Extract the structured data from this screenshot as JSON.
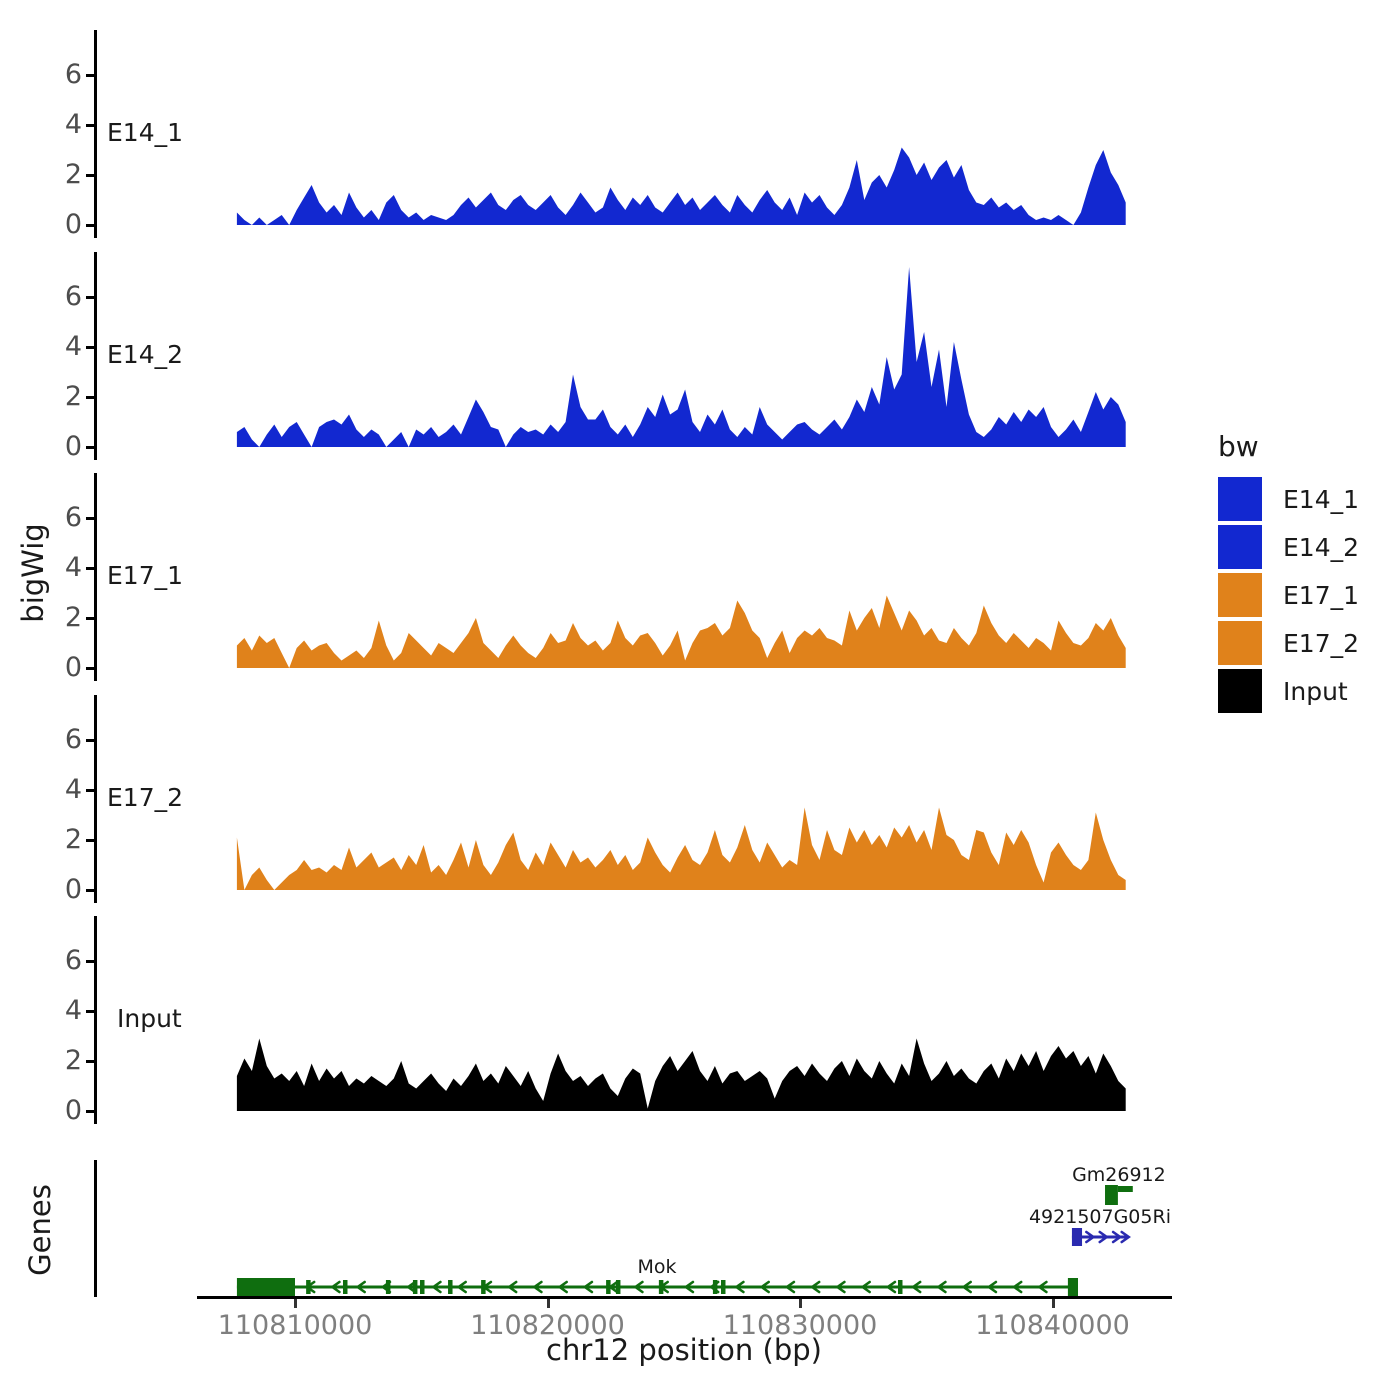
{
  "figure": {
    "ylabel_signal": "bigWig",
    "ylabel_genes": "Genes",
    "xlabel": "chr12 position (bp)"
  },
  "legend": {
    "title": "bw",
    "entries": [
      {
        "label": "E14_1",
        "color": "#1228D0"
      },
      {
        "label": "E14_2",
        "color": "#1228D0"
      },
      {
        "label": "E17_1",
        "color": "#E0821B"
      },
      {
        "label": "E17_2",
        "color": "#E0821B"
      },
      {
        "label": "Input",
        "color": "#000000"
      }
    ]
  },
  "chart_data": {
    "type": "area",
    "title": "",
    "xlabel": "chr12 position (bp)",
    "ylabel": "bigWig",
    "legend_position": "right",
    "x_axis": {
      "ticks": [
        110810000,
        110820000,
        110830000,
        110840000
      ],
      "tick_labels": [
        "110810000",
        "110820000",
        "110830000",
        "110840000"
      ],
      "domain": [
        110806240,
        110844650
      ]
    },
    "y_axis": {
      "ticks": [
        0,
        2,
        4,
        6
      ],
      "ylim": [
        0,
        7.5
      ]
    },
    "signal_bp_start": 110807700,
    "signal_bp_end": 110842900,
    "tracks": [
      {
        "name": "E14_1",
        "color": "#1228D0",
        "values": [
          0.5,
          0.2,
          0,
          0.3,
          0,
          0.2,
          0.4,
          0,
          0.6,
          1.1,
          1.6,
          0.9,
          0.5,
          0.8,
          0.4,
          1.3,
          0.7,
          0.3,
          0.6,
          0.2,
          0.9,
          1.2,
          0.6,
          0.3,
          0.5,
          0.2,
          0.4,
          0.3,
          0.2,
          0.4,
          0.8,
          1.1,
          0.7,
          1.0,
          1.3,
          0.8,
          0.6,
          1.0,
          1.2,
          0.8,
          0.6,
          0.9,
          1.2,
          0.7,
          0.4,
          0.8,
          1.3,
          0.9,
          0.5,
          0.7,
          1.5,
          1.0,
          0.6,
          1.1,
          0.8,
          1.2,
          0.7,
          0.5,
          0.9,
          1.3,
          0.8,
          1.1,
          0.6,
          0.9,
          1.2,
          0.8,
          0.5,
          1.2,
          0.8,
          0.5,
          1.0,
          1.4,
          0.9,
          0.6,
          1.1,
          0.4,
          1.3,
          0.9,
          1.2,
          0.7,
          0.4,
          0.8,
          1.5,
          2.6,
          1.0,
          1.7,
          2.0,
          1.5,
          2.2,
          3.1,
          2.7,
          2.0,
          2.5,
          1.8,
          2.3,
          2.6,
          1.9,
          2.4,
          1.4,
          0.9,
          0.8,
          1.1,
          0.7,
          0.9,
          0.6,
          0.8,
          0.4,
          0.2,
          0.3,
          0.2,
          0.4,
          0.2,
          0,
          0.5,
          1.5,
          2.4,
          3.0,
          2.1,
          1.6,
          0.9
        ]
      },
      {
        "name": "E14_2",
        "color": "#1228D0",
        "values": [
          0.6,
          0.8,
          0.3,
          0,
          0.5,
          0.9,
          0.4,
          0.8,
          1.0,
          0.5,
          0,
          0.8,
          1.0,
          1.1,
          0.9,
          1.3,
          0.7,
          0.4,
          0.7,
          0.5,
          0,
          0.3,
          0.6,
          0,
          0.7,
          0.5,
          0.8,
          0.4,
          0.6,
          0.9,
          0.5,
          1.2,
          1.9,
          1.4,
          0.8,
          0.7,
          0,
          0.5,
          0.8,
          0.6,
          0.7,
          0.5,
          0.9,
          0.6,
          1.0,
          2.9,
          1.6,
          1.1,
          1.1,
          1.5,
          0.8,
          0.5,
          0.9,
          0.4,
          0.9,
          1.6,
          1.2,
          2.1,
          1.3,
          1.5,
          2.3,
          1.0,
          0.6,
          1.3,
          0.9,
          1.5,
          0.7,
          0.4,
          0.8,
          0.5,
          1.6,
          0.9,
          0.6,
          0.3,
          0.6,
          0.9,
          1.0,
          0.7,
          0.5,
          0.8,
          1.1,
          0.7,
          1.2,
          1.9,
          1.4,
          2.4,
          1.7,
          3.6,
          2.3,
          2.9,
          7.2,
          3.4,
          4.6,
          2.4,
          3.9,
          1.6,
          4.2,
          2.7,
          1.3,
          0.6,
          0.4,
          0.7,
          1.2,
          0.9,
          1.4,
          1.0,
          1.5,
          1.2,
          1.6,
          0.8,
          0.4,
          0.7,
          1.1,
          0.6,
          1.4,
          2.2,
          1.5,
          2.0,
          1.7,
          1.0
        ]
      },
      {
        "name": "E17_1",
        "color": "#E0821B",
        "values": [
          0.9,
          1.2,
          0.7,
          1.3,
          1.0,
          1.2,
          0.6,
          0,
          0.8,
          1.1,
          0.7,
          0.9,
          1.0,
          0.6,
          0.3,
          0.5,
          0.7,
          0.4,
          0.8,
          1.9,
          0.9,
          0.3,
          0.6,
          1.4,
          1.1,
          0.8,
          0.5,
          1.0,
          0.8,
          0.6,
          1.0,
          1.4,
          2.0,
          1.0,
          0.7,
          0.4,
          0.9,
          1.3,
          0.9,
          0.6,
          0.4,
          0.8,
          1.4,
          1.0,
          1.1,
          1.8,
          1.2,
          0.9,
          1.1,
          0.7,
          1.0,
          1.9,
          1.2,
          0.9,
          1.3,
          1.4,
          1.0,
          0.5,
          0.9,
          1.5,
          0.3,
          1.0,
          1.5,
          1.6,
          1.8,
          1.3,
          1.6,
          2.7,
          2.2,
          1.5,
          1.2,
          0.4,
          1.0,
          1.5,
          0.6,
          1.2,
          1.5,
          1.3,
          1.6,
          1.2,
          1.1,
          0.9,
          2.3,
          1.5,
          2.0,
          2.4,
          1.6,
          2.9,
          2.2,
          1.5,
          2.3,
          1.9,
          1.3,
          1.6,
          1.1,
          1.0,
          1.6,
          1.2,
          0.9,
          1.4,
          2.5,
          1.8,
          1.3,
          1.0,
          1.4,
          1.1,
          0.8,
          1.2,
          1.0,
          0.7,
          1.9,
          1.4,
          1.0,
          0.9,
          1.2,
          1.8,
          1.5,
          2.0,
          1.3,
          0.8
        ]
      },
      {
        "name": "E17_2",
        "color": "#E0821B",
        "values": [
          2.1,
          0,
          0.6,
          0.9,
          0.4,
          0,
          0.3,
          0.6,
          0.8,
          1.2,
          0.8,
          0.9,
          0.7,
          1.0,
          0.8,
          1.7,
          0.9,
          1.2,
          1.5,
          0.9,
          1.1,
          1.3,
          0.8,
          1.4,
          1.0,
          1.8,
          0.7,
          1.0,
          0.6,
          1.2,
          1.9,
          0.9,
          2.0,
          1.0,
          0.6,
          1.1,
          1.8,
          2.3,
          1.2,
          0.8,
          1.5,
          1.0,
          1.9,
          1.4,
          0.9,
          1.6,
          1.1,
          1.3,
          0.9,
          1.2,
          1.6,
          1.0,
          1.4,
          0.8,
          1.1,
          2.1,
          1.5,
          1.0,
          0.7,
          1.3,
          1.8,
          1.2,
          1.0,
          1.5,
          2.4,
          1.4,
          1.1,
          1.7,
          2.6,
          1.6,
          1.1,
          1.9,
          1.4,
          0.9,
          1.2,
          1.0,
          3.3,
          1.8,
          1.2,
          2.4,
          1.6,
          1.4,
          2.5,
          1.9,
          2.4,
          1.8,
          2.2,
          1.7,
          2.5,
          2.1,
          2.6,
          1.9,
          2.4,
          1.6,
          3.3,
          2.2,
          2.0,
          1.4,
          1.2,
          2.4,
          2.3,
          1.5,
          1.0,
          2.3,
          1.8,
          2.4,
          1.9,
          1.0,
          0.3,
          1.5,
          1.9,
          1.4,
          1.0,
          0.8,
          1.2,
          3.1,
          2.0,
          1.2,
          0.6,
          0.4
        ]
      },
      {
        "name": "Input",
        "color": "#000000",
        "label_indent": 10,
        "values": [
          1.4,
          2.1,
          1.6,
          2.9,
          1.8,
          1.3,
          1.5,
          1.2,
          1.6,
          1.0,
          1.9,
          1.2,
          1.7,
          1.3,
          1.6,
          1.0,
          1.3,
          1.1,
          1.4,
          1.2,
          1.0,
          1.3,
          2.0,
          1.1,
          0.9,
          1.2,
          1.5,
          1.1,
          0.8,
          1.3,
          1.0,
          1.4,
          1.9,
          1.2,
          1.5,
          1.1,
          1.8,
          1.4,
          1.0,
          1.6,
          0.9,
          0.4,
          1.5,
          2.3,
          1.6,
          1.2,
          1.4,
          1.0,
          1.3,
          1.5,
          0.9,
          0.6,
          1.3,
          1.7,
          1.5,
          0.1,
          1.2,
          1.8,
          2.2,
          1.6,
          2.0,
          2.4,
          1.6,
          1.2,
          1.8,
          1.1,
          1.5,
          1.6,
          1.2,
          1.4,
          1.6,
          1.3,
          0.5,
          1.2,
          1.6,
          1.8,
          1.4,
          1.9,
          1.5,
          1.2,
          1.7,
          2.0,
          1.4,
          2.1,
          1.6,
          1.3,
          2.0,
          1.5,
          1.1,
          1.9,
          1.4,
          2.9,
          1.9,
          1.2,
          1.5,
          2.0,
          1.4,
          1.7,
          1.3,
          1.1,
          1.6,
          1.9,
          1.3,
          2.1,
          1.6,
          2.3,
          1.8,
          2.4,
          1.6,
          2.2,
          2.6,
          2.1,
          2.4,
          1.8,
          2.2,
          1.5,
          2.3,
          1.8,
          1.2,
          0.9
        ]
      }
    ],
    "genes": [
      {
        "name": "Gm26912",
        "color": "#0F6E0F",
        "strand": "+",
        "row": 0,
        "glyph": "compact",
        "box": [
          110842080,
          110842590
        ],
        "bar": [
          110842590,
          110843180
        ]
      },
      {
        "name": "4921507G05Ri",
        "color": "#2A2AB0",
        "strand": "+",
        "row": 1,
        "glyph": "model",
        "line": [
          110840770,
          110842990
        ],
        "thick_box": [
          110840770,
          110841170
        ],
        "arrows": [
          110841500,
          110842030,
          110842560,
          110842900
        ]
      },
      {
        "name": "Mok",
        "color": "#0F6E0F",
        "strand": "-",
        "row": 2,
        "glyph": "model",
        "line": [
          110807700,
          110841010
        ],
        "thick_box": [
          110807700,
          110810000
        ],
        "end_box": [
          110840610,
          110841010
        ],
        "exon_ticks": [
          110810520,
          110811980,
          110813680,
          110814750,
          110815030,
          110816140,
          110817450,
          110822400,
          110822790,
          110824490,
          110826630,
          110826950,
          110833960
        ],
        "arrow_start": 110810600,
        "arrow_step": 1000,
        "arrow_count": 30
      }
    ]
  }
}
